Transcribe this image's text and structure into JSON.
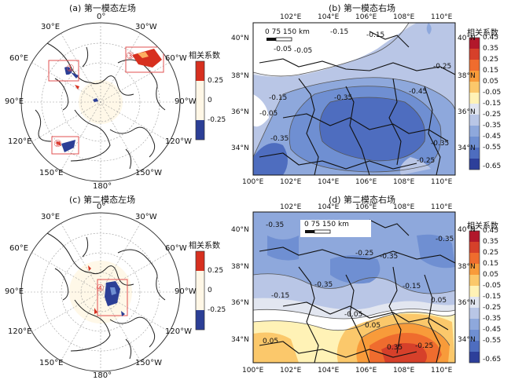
{
  "panels": {
    "a": {
      "title": "(a) 第一模态左场"
    },
    "b": {
      "title": "(b) 第一模态右场"
    },
    "c": {
      "title": "(c) 第二模态左场"
    },
    "d": {
      "title": "(d) 第二模态右场"
    }
  },
  "polar_labels": {
    "lon_0": "0°",
    "lon_30w": "30°W",
    "lon_60w": "60°W",
    "lon_90w": "90°W",
    "lon_120w": "120°W",
    "lon_150w": "150°W",
    "lon_180": "180°",
    "lon_150e": "150°E",
    "lon_120e": "120°E",
    "lon_90e": "90°E",
    "lon_60e": "60°E",
    "lon_30e": "30°E"
  },
  "small_colorbar": {
    "title": "相关系数",
    "ticks": [
      "0.25",
      "0",
      "-0.25"
    ],
    "colors": [
      "#d7301f",
      "#fff7e6",
      "#fff7e6",
      "#2c3f96"
    ]
  },
  "region_markers": {
    "r1": "①",
    "r2": "②",
    "r3": "③",
    "r4": "④"
  },
  "map_axes": {
    "lon_ticks": [
      "100°E",
      "102°E",
      "104°E",
      "106°E",
      "108°E",
      "110°E"
    ],
    "top_lon_ticks": [
      "102°E",
      "104°E",
      "106°E",
      "108°E",
      "110°E"
    ],
    "lat_ticks": [
      "40°N",
      "38°N",
      "36°N",
      "34°N"
    ]
  },
  "scale_bar": {
    "text": "0  75  150 km"
  },
  "contour_labels_b": [
    "-0.15",
    "-0.15",
    "-0.05",
    "-0.05",
    "-0.25",
    "-0.15",
    "-0.05",
    "-0.35",
    "-0.45",
    "-0.35",
    "-0.35",
    "-0.25"
  ],
  "contour_labels_d": [
    "-0.35",
    "-0.25",
    "-0.35",
    "-0.35",
    "-0.15",
    "-0.15",
    "-0.05",
    "0.05",
    "0.05",
    "0.35",
    "-0.25",
    "0.05",
    "-0.35"
  ],
  "big_colorbar": {
    "title": "相关系数",
    "ticks": [
      "0.45",
      "0.35",
      "0.25",
      "0.15",
      "0.05",
      "-0.05",
      "-0.15",
      "-0.25",
      "-0.35",
      "-0.45",
      "-0.55",
      "-0.65"
    ],
    "colors": [
      "#b2182b",
      "#d6402a",
      "#ef6c2e",
      "#f89b3a",
      "#fbc86b",
      "#fff2b6",
      "#e2e6f0",
      "#b9c6e6",
      "#8ea8dc",
      "#6f8fd2",
      "#4e6dbf",
      "#2d3f9a"
    ]
  }
}
